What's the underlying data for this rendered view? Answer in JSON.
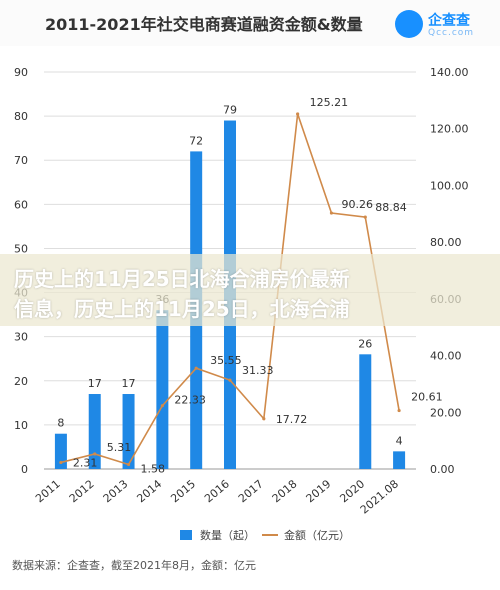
{
  "title": "2011-2021年社交电商赛道融资金额&数量",
  "logo": {
    "cn": "企查查",
    "en": "Qcc.com"
  },
  "overlay": {
    "line1": "历史上的11月25日北海合浦房价最新",
    "line2": "信息，历史上的11月25日，北海合浦"
  },
  "legend": {
    "bar": "数量（起）",
    "line": "金额（亿元）"
  },
  "source": "数据来源：企查查，截至2021年8月，金额：亿元",
  "colors": {
    "bar": "#1f88e5",
    "line": "#d08a4a"
  },
  "chart_data": {
    "type": "bar",
    "categories": [
      "2011",
      "2012",
      "2013",
      "2014",
      "2015",
      "2016",
      "2017",
      "2018",
      "2019",
      "2020",
      "2021.08"
    ],
    "series": [
      {
        "name": "数量（起）",
        "type": "bar",
        "axis": "left",
        "values": [
          8,
          17,
          17,
          36,
          72,
          79,
          null,
          null,
          null,
          26,
          4
        ],
        "labels": [
          "8",
          "17",
          "17",
          "36",
          "72",
          "79",
          "",
          "",
          "",
          "26",
          "4"
        ]
      },
      {
        "name": "金额（亿元）",
        "type": "line",
        "axis": "right",
        "values": [
          2.31,
          5.31,
          1.58,
          22.33,
          35.55,
          31.33,
          17.72,
          125.21,
          90.26,
          88.84,
          20.61
        ],
        "labels": [
          "2.31",
          "5.31",
          "1.58",
          "22.33",
          "35.55",
          "31.33",
          "17.72",
          "125.21",
          "90.26",
          "88.84",
          "20.61"
        ]
      }
    ],
    "y_left": {
      "range": [
        0,
        90
      ],
      "ticks": [
        "0",
        "10",
        "20",
        "30",
        "40",
        "50",
        "60",
        "70",
        "80",
        "90"
      ]
    },
    "y_right": {
      "range": [
        0,
        140
      ],
      "ticks": [
        "0.00",
        "20.00",
        "40.00",
        "60.00",
        "80.00",
        "100.00",
        "120.00",
        "140.00"
      ]
    },
    "grid": true,
    "legend_position": "bottom"
  }
}
